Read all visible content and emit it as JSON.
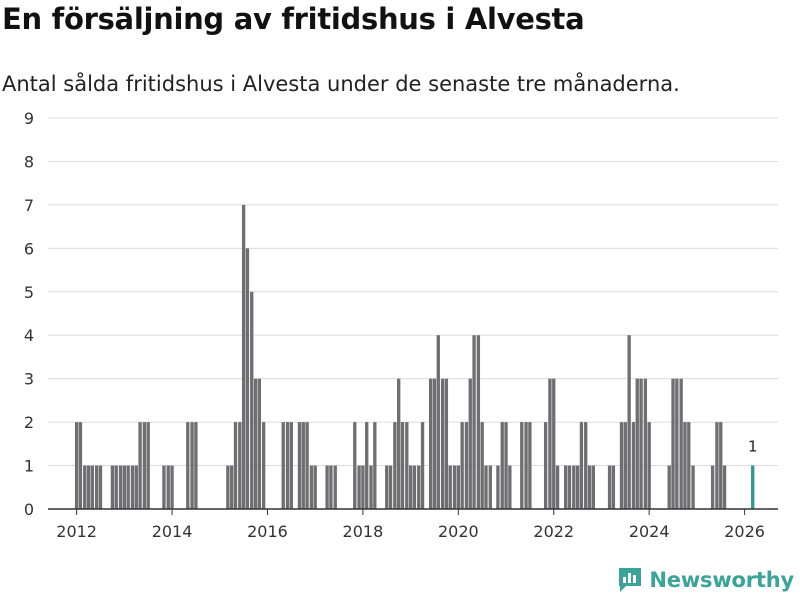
{
  "title": "En försäljning av fritidshus i Alvesta",
  "subtitle": "Antal sålda fritidshus i Alvesta under de senaste tre månaderna.",
  "brand": {
    "name": "Newsworthy",
    "icon": "newsworthy-logo-icon",
    "color": "#3aa39a"
  },
  "colors": {
    "bar": "#6e6e73",
    "highlight": "#2b9a92",
    "grid": "#dcdcdc",
    "axis": "#333333"
  },
  "chart_data": {
    "type": "bar",
    "title": "En försäljning av fritidshus i Alvesta",
    "subtitle": "Antal sålda fritidshus i Alvesta under de senaste tre månaderna.",
    "xlabel": "",
    "ylabel": "",
    "ylim": [
      0,
      9
    ],
    "yticks": [
      0,
      1,
      2,
      3,
      4,
      5,
      6,
      7,
      8,
      9
    ],
    "xlim": [
      2011.4,
      2026.7
    ],
    "xticks": [
      2012,
      2014,
      2016,
      2018,
      2020,
      2022,
      2024,
      2026
    ],
    "xtick_labels": [
      "2012",
      "2014",
      "2016",
      "2018",
      "2020",
      "2022",
      "2024",
      "2026"
    ],
    "grid": true,
    "bar_width_years": 0.07,
    "highlight": {
      "x": 2026.17,
      "value": 1,
      "label": "1"
    },
    "x": [
      2012.0,
      2012.08,
      2012.17,
      2012.25,
      2012.33,
      2012.42,
      2012.5,
      2012.75,
      2012.83,
      2012.92,
      2013.0,
      2013.08,
      2013.17,
      2013.25,
      2013.33,
      2013.42,
      2013.5,
      2013.83,
      2013.92,
      2014.0,
      2014.33,
      2014.42,
      2014.5,
      2015.17,
      2015.25,
      2015.33,
      2015.42,
      2015.5,
      2015.58,
      2015.67,
      2015.75,
      2015.83,
      2015.92,
      2016.0,
      2016.33,
      2016.42,
      2016.5,
      2016.67,
      2016.75,
      2016.83,
      2016.92,
      2017.0,
      2017.25,
      2017.33,
      2017.42,
      2017.83,
      2017.92,
      2018.0,
      2018.08,
      2018.17,
      2018.25,
      2018.33,
      2018.5,
      2018.58,
      2018.67,
      2018.75,
      2018.83,
      2018.92,
      2019.0,
      2019.08,
      2019.17,
      2019.25,
      2019.42,
      2019.5,
      2019.58,
      2019.67,
      2019.75,
      2019.83,
      2019.92,
      2020.0,
      2020.08,
      2020.17,
      2020.25,
      2020.33,
      2020.42,
      2020.5,
      2020.58,
      2020.67,
      2020.83,
      2020.92,
      2021.0,
      2021.08,
      2021.33,
      2021.42,
      2021.5,
      2021.83,
      2021.92,
      2022.0,
      2022.08,
      2022.25,
      2022.33,
      2022.42,
      2022.5,
      2022.58,
      2022.67,
      2022.75,
      2022.83,
      2023.17,
      2023.25,
      2023.42,
      2023.5,
      2023.58,
      2023.67,
      2023.75,
      2023.83,
      2023.92,
      2024.0,
      2024.42,
      2024.5,
      2024.58,
      2024.67,
      2024.75,
      2024.83,
      2024.92,
      2025.33,
      2025.42,
      2025.5,
      2025.58,
      2026.17
    ],
    "values": [
      2,
      2,
      1,
      1,
      1,
      1,
      1,
      1,
      1,
      1,
      1,
      1,
      1,
      1,
      2,
      2,
      2,
      1,
      1,
      1,
      2,
      2,
      2,
      1,
      1,
      2,
      2,
      7,
      6,
      5,
      3,
      3,
      2,
      0,
      2,
      2,
      2,
      2,
      2,
      2,
      1,
      1,
      1,
      1,
      1,
      2,
      1,
      1,
      2,
      1,
      2,
      0,
      1,
      1,
      2,
      3,
      2,
      2,
      1,
      1,
      1,
      2,
      3,
      3,
      4,
      3,
      3,
      1,
      1,
      1,
      2,
      2,
      3,
      4,
      4,
      2,
      1,
      1,
      1,
      2,
      2,
      1,
      2,
      2,
      2,
      2,
      3,
      3,
      1,
      1,
      1,
      1,
      1,
      2,
      2,
      1,
      1,
      1,
      1,
      2,
      2,
      4,
      2,
      3,
      3,
      3,
      2,
      1,
      3,
      3,
      3,
      2,
      2,
      1,
      1,
      2,
      2,
      1,
      1
    ]
  }
}
